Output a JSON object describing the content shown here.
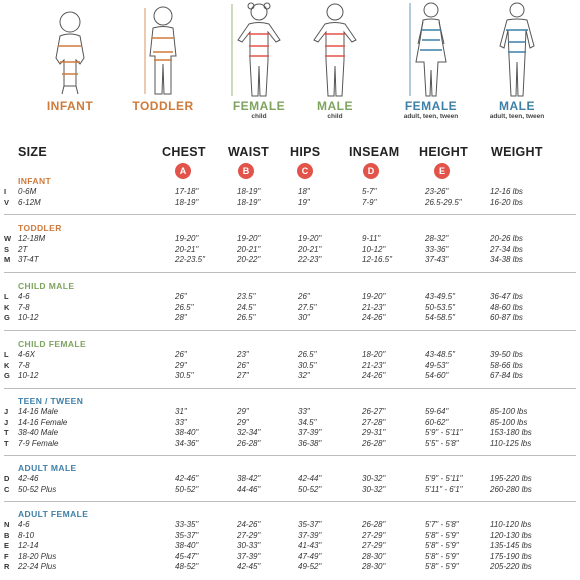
{
  "figures": [
    {
      "label": "INFANT",
      "sub": "",
      "color": "#cf7a3a"
    },
    {
      "label": "TODDLER",
      "sub": "",
      "color": "#cf7a3a"
    },
    {
      "label": "FEMALE",
      "sub": "child",
      "color": "#7ea35e"
    },
    {
      "label": "MALE",
      "sub": "child",
      "color": "#7ea35e"
    },
    {
      "label": "FEMALE",
      "sub": "adult, teen, tween",
      "color": "#3e7fa8"
    },
    {
      "label": "MALE",
      "sub": "adult, teen, tween",
      "color": "#3e7fa8"
    }
  ],
  "headers": {
    "size": "SIZE",
    "chest": "CHEST",
    "waist": "WAIST",
    "hips": "HIPS",
    "inseam": "INSEAM",
    "height": "HEIGHT",
    "weight": "WEIGHT"
  },
  "badges": [
    "A",
    "B",
    "C",
    "D",
    "E"
  ],
  "sections": [
    {
      "title": "INFANT",
      "color": "#cf7a3a",
      "rows": [
        {
          "code": "I",
          "size": "0-6M",
          "chest": "17-18\"",
          "waist": "18-19\"",
          "hips": "18\"",
          "inseam": "5-7\"",
          "height": "23-26\"",
          "weight": "12-16 lbs"
        },
        {
          "code": "V",
          "size": "6-12M",
          "chest": "18-19\"",
          "waist": "18-19\"",
          "hips": "19\"",
          "inseam": "7-9\"",
          "height": "26.5-29.5\"",
          "weight": "16-20 lbs"
        }
      ]
    },
    {
      "title": "TODDLER",
      "color": "#cf7a3a",
      "rows": [
        {
          "code": "W",
          "size": "12-18M",
          "chest": "19-20\"",
          "waist": "19-20\"",
          "hips": "19-20\"",
          "inseam": "9-11\"",
          "height": "28-32\"",
          "weight": "20-26 lbs"
        },
        {
          "code": "S",
          "size": "2T",
          "chest": "20-21\"",
          "waist": "20-21\"",
          "hips": "20-21\"",
          "inseam": "10-12\"",
          "height": "33-36\"",
          "weight": "27-34 lbs"
        },
        {
          "code": "M",
          "size": "3T-4T",
          "chest": "22-23.5\"",
          "waist": "20-22\"",
          "hips": "22-23\"",
          "inseam": "12-16.5\"",
          "height": "37-43\"",
          "weight": "34-38 lbs"
        }
      ]
    },
    {
      "title": "CHILD MALE",
      "color": "#7ea35e",
      "rows": [
        {
          "code": "L",
          "size": "4-6",
          "chest": "26\"",
          "waist": "23.5\"",
          "hips": "26\"",
          "inseam": "19-20\"",
          "height": "43-49.5\"",
          "weight": "36-47 lbs"
        },
        {
          "code": "K",
          "size": "7-8",
          "chest": "26.5\"",
          "waist": "24.5\"",
          "hips": "27.5\"",
          "inseam": "21-23\"",
          "height": "50-53.5\"",
          "weight": "48-60 lbs"
        },
        {
          "code": "G",
          "size": "10-12",
          "chest": "28\"",
          "waist": "26.5\"",
          "hips": "30\"",
          "inseam": "24-26\"",
          "height": "54-58.5\"",
          "weight": "60-87 lbs"
        }
      ]
    },
    {
      "title": "CHILD FEMALE",
      "color": "#7ea35e",
      "rows": [
        {
          "code": "L",
          "size": "4-6X",
          "chest": "26\"",
          "waist": "23\"",
          "hips": "26.5\"",
          "inseam": "18-20\"",
          "height": "43-48.5\"",
          "weight": "39-50 lbs"
        },
        {
          "code": "K",
          "size": "7-8",
          "chest": "29\"",
          "waist": "26\"",
          "hips": "30.5\"",
          "inseam": "21-23\"",
          "height": "49-53\"",
          "weight": "58-66 lbs"
        },
        {
          "code": "G",
          "size": "10-12",
          "chest": "30.5\"",
          "waist": "27\"",
          "hips": "32\"",
          "inseam": "24-26\"",
          "height": "54-60\"",
          "weight": "67-84 lbs"
        }
      ]
    },
    {
      "title": "TEEN / TWEEN",
      "color": "#3e7fa8",
      "rows": [
        {
          "code": "J",
          "size": "14-16 Male",
          "chest": "31\"",
          "waist": "29\"",
          "hips": "33\"",
          "inseam": "26-27\"",
          "height": "59-64\"",
          "weight": "85-100 lbs"
        },
        {
          "code": "J",
          "size": "14-16 Female",
          "chest": "33\"",
          "waist": "29\"",
          "hips": "34.5\"",
          "inseam": "27-28\"",
          "height": "60-62\"",
          "weight": "85-100 lbs"
        },
        {
          "code": "T",
          "size": "38-40 Male",
          "chest": "38-40\"",
          "waist": "32-34\"",
          "hips": "37-39\"",
          "inseam": "29-31\"",
          "height": "5'9\" - 5'11\"",
          "weight": "153-180 lbs"
        },
        {
          "code": "T",
          "size": "7-9 Female",
          "chest": "34-36\"",
          "waist": "26-28\"",
          "hips": "36-38\"",
          "inseam": "26-28\"",
          "height": "5'5\" - 5'8\"",
          "weight": "110-125 lbs"
        }
      ]
    },
    {
      "title": "ADULT MALE",
      "color": "#3e7fa8",
      "rows": [
        {
          "code": "D",
          "size": "42-46",
          "chest": "42-46\"",
          "waist": "38-42\"",
          "hips": "42-44\"",
          "inseam": "30-32\"",
          "height": "5'9\" - 5'11\"",
          "weight": "195-220 lbs"
        },
        {
          "code": "C",
          "size": "50-52 Plus",
          "chest": "50-52\"",
          "waist": "44-46\"",
          "hips": "50-52\"",
          "inseam": "30-32\"",
          "height": "5'11\" - 6'1\"",
          "weight": "260-280 lbs"
        }
      ]
    },
    {
      "title": "ADULT FEMALE",
      "color": "#3e7fa8",
      "rows": [
        {
          "code": "N",
          "size": "4-6",
          "chest": "33-35\"",
          "waist": "24-26\"",
          "hips": "35-37\"",
          "inseam": "26-28\"",
          "height": "5'7\" - 5'8\"",
          "weight": "110-120 lbs"
        },
        {
          "code": "B",
          "size": "8-10",
          "chest": "35-37\"",
          "waist": "27-29\"",
          "hips": "37-39\"",
          "inseam": "27-29\"",
          "height": "5'8\" - 5'9\"",
          "weight": "120-130 lbs"
        },
        {
          "code": "E",
          "size": "12-14",
          "chest": "38-40\"",
          "waist": "30-33\"",
          "hips": "41-43\"",
          "inseam": "27-29\"",
          "height": "5'8\" - 5'9\"",
          "weight": "135-145 lbs"
        },
        {
          "code": "F",
          "size": "18-20 Plus",
          "chest": "45-47\"",
          "waist": "37-39\"",
          "hips": "47-49\"",
          "inseam": "28-30\"",
          "height": "5'8\" - 5'9\"",
          "weight": "175-190 lbs"
        },
        {
          "code": "R",
          "size": "22-24 Plus",
          "chest": "48-52\"",
          "waist": "42-45\"",
          "hips": "49-52\"",
          "inseam": "28-30\"",
          "height": "5'8\" - 5'9\"",
          "weight": "205-220 lbs"
        }
      ]
    }
  ]
}
